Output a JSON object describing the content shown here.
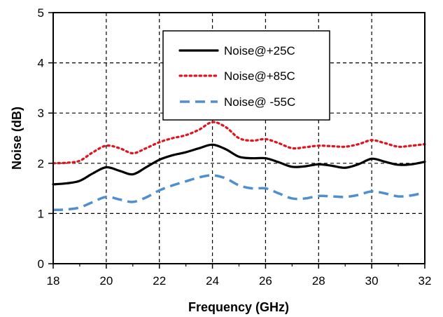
{
  "chart_data": {
    "type": "line",
    "title": "",
    "xlabel": "Frequency (GHz)",
    "ylabel": "Noise (dB)",
    "xlim": [
      18,
      32
    ],
    "ylim": [
      0,
      5
    ],
    "x_ticks": [
      "18",
      "20",
      "22",
      "24",
      "26",
      "28",
      "30",
      "32"
    ],
    "y_ticks": [
      "0",
      "1",
      "2",
      "3",
      "4",
      "5"
    ],
    "grid": true,
    "legend_position": "top-center",
    "series": [
      {
        "name": "Noise@+25C",
        "color": "#000000",
        "style": "solid",
        "x": [
          18,
          18.5,
          19,
          19.5,
          20,
          20.5,
          21,
          21.5,
          22,
          22.5,
          23,
          23.5,
          24,
          24.5,
          25,
          25.5,
          26,
          26.5,
          27,
          27.5,
          28,
          28.5,
          29,
          29.5,
          30,
          30.5,
          31,
          31.5,
          32
        ],
        "values": [
          1.58,
          1.6,
          1.65,
          1.8,
          1.92,
          1.85,
          1.78,
          1.92,
          2.07,
          2.16,
          2.22,
          2.3,
          2.37,
          2.28,
          2.13,
          2.1,
          2.1,
          2.02,
          1.93,
          1.94,
          1.98,
          1.95,
          1.91,
          1.98,
          2.09,
          2.03,
          1.97,
          1.98,
          2.03
        ]
      },
      {
        "name": "Noise@+85C",
        "color": "#e0141e",
        "style": "dotted",
        "x": [
          18,
          18.5,
          19,
          19.5,
          20,
          20.5,
          21,
          21.5,
          22,
          22.5,
          23,
          23.5,
          24,
          24.5,
          25,
          25.5,
          26,
          26.5,
          27,
          27.5,
          28,
          28.5,
          29,
          29.5,
          30,
          30.5,
          31,
          31.5,
          32
        ],
        "values": [
          2.0,
          2.01,
          2.05,
          2.22,
          2.35,
          2.3,
          2.2,
          2.3,
          2.42,
          2.5,
          2.56,
          2.67,
          2.82,
          2.72,
          2.5,
          2.45,
          2.48,
          2.4,
          2.3,
          2.32,
          2.35,
          2.34,
          2.33,
          2.38,
          2.46,
          2.4,
          2.33,
          2.35,
          2.38
        ]
      },
      {
        "name": "Noise@ -55C",
        "color": "#4f8fd0",
        "style": "dashed",
        "x": [
          18,
          18.5,
          19,
          19.5,
          20,
          20.5,
          21,
          21.5,
          22,
          22.5,
          23,
          23.5,
          24,
          24.5,
          25,
          25.5,
          26,
          26.5,
          27,
          27.5,
          28,
          28.5,
          29,
          29.5,
          30,
          30.5,
          31,
          31.5,
          32
        ],
        "values": [
          1.07,
          1.08,
          1.12,
          1.23,
          1.33,
          1.28,
          1.23,
          1.32,
          1.46,
          1.56,
          1.64,
          1.72,
          1.76,
          1.7,
          1.56,
          1.5,
          1.5,
          1.4,
          1.3,
          1.3,
          1.35,
          1.34,
          1.33,
          1.37,
          1.44,
          1.4,
          1.34,
          1.36,
          1.42
        ]
      }
    ]
  }
}
